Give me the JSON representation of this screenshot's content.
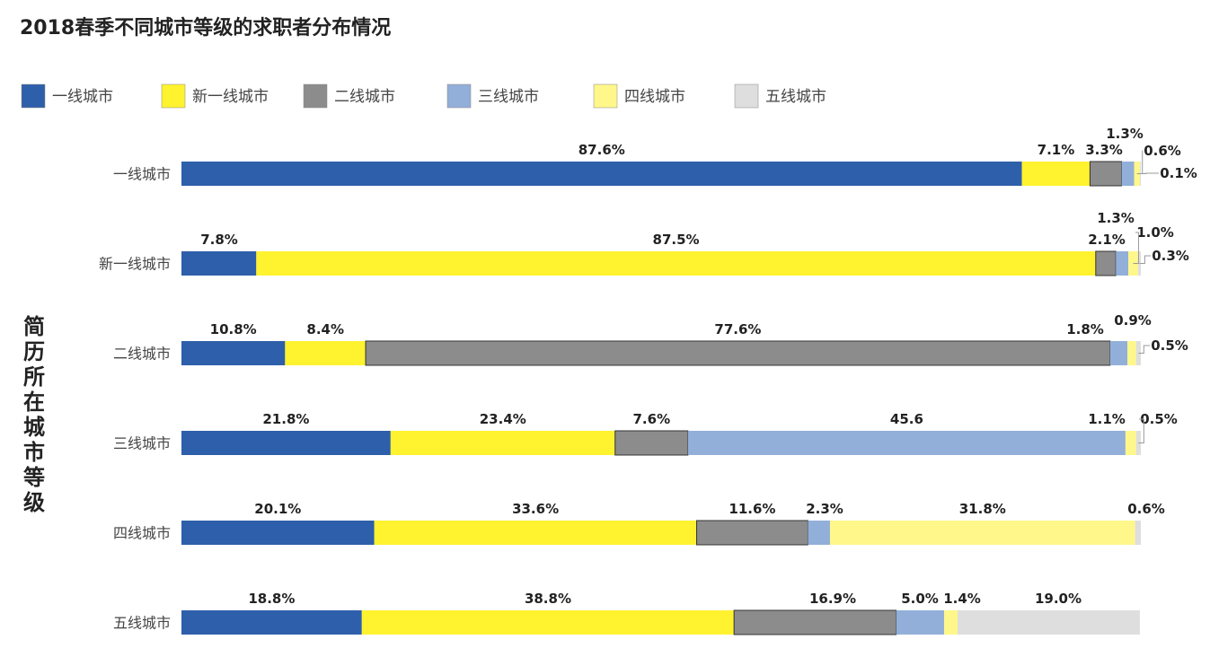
{
  "chart_data": {
    "type": "bar",
    "orientation": "horizontal",
    "stacked": true,
    "title": "2018春季不同城市等级的求职者分布情况",
    "ylabel": "简历所在城市等级",
    "xlabel": "",
    "xlim": [
      0,
      100
    ],
    "grid": false,
    "legend_position": "top",
    "categories": [
      "一线城市",
      "新一线城市",
      "二线城市",
      "三线城市",
      "四线城市",
      "五线城市"
    ],
    "series": [
      {
        "name": "一线城市",
        "color": "#2e5faa",
        "values": [
          87.6,
          7.8,
          10.8,
          21.8,
          20.1,
          18.8
        ],
        "labels": [
          "87.6%",
          "7.8%",
          "10.8%",
          "21.8%",
          "20.1%",
          "18.8%"
        ]
      },
      {
        "name": "新一线城市",
        "color": "#fff22f",
        "values": [
          7.1,
          87.5,
          8.4,
          23.4,
          33.6,
          38.8
        ],
        "labels": [
          "7.1%",
          "87.5%",
          "8.4%",
          "23.4%",
          "33.6%",
          "38.8%"
        ]
      },
      {
        "name": "二线城市",
        "color": "#8c8c8c",
        "values": [
          3.3,
          2.1,
          77.6,
          7.6,
          11.6,
          16.9
        ],
        "labels": [
          "3.3%",
          "2.1%",
          "77.6%",
          "7.6%",
          "11.6%",
          "16.9%"
        ]
      },
      {
        "name": "三线城市",
        "color": "#92afd9",
        "values": [
          1.3,
          1.3,
          1.8,
          45.6,
          2.3,
          5.0
        ],
        "labels": [
          "1.3%",
          "1.3%",
          "1.8%",
          "45.6",
          "2.3%",
          "5.0%"
        ]
      },
      {
        "name": "四线城市",
        "color": "#fff78a",
        "values": [
          0.6,
          1.0,
          0.9,
          1.1,
          31.8,
          1.4
        ],
        "labels": [
          "0.6%",
          "1.0%",
          "0.9%",
          "1.1%",
          "31.8%",
          "1.4%"
        ]
      },
      {
        "name": "五线城市",
        "color": "#dedede",
        "values": [
          0.1,
          0.3,
          0.5,
          0.5,
          0.6,
          19.0
        ],
        "labels": [
          "0.1%",
          "0.3%",
          "0.5%",
          "0.5%",
          "0.6%",
          "19.0%"
        ]
      }
    ]
  }
}
